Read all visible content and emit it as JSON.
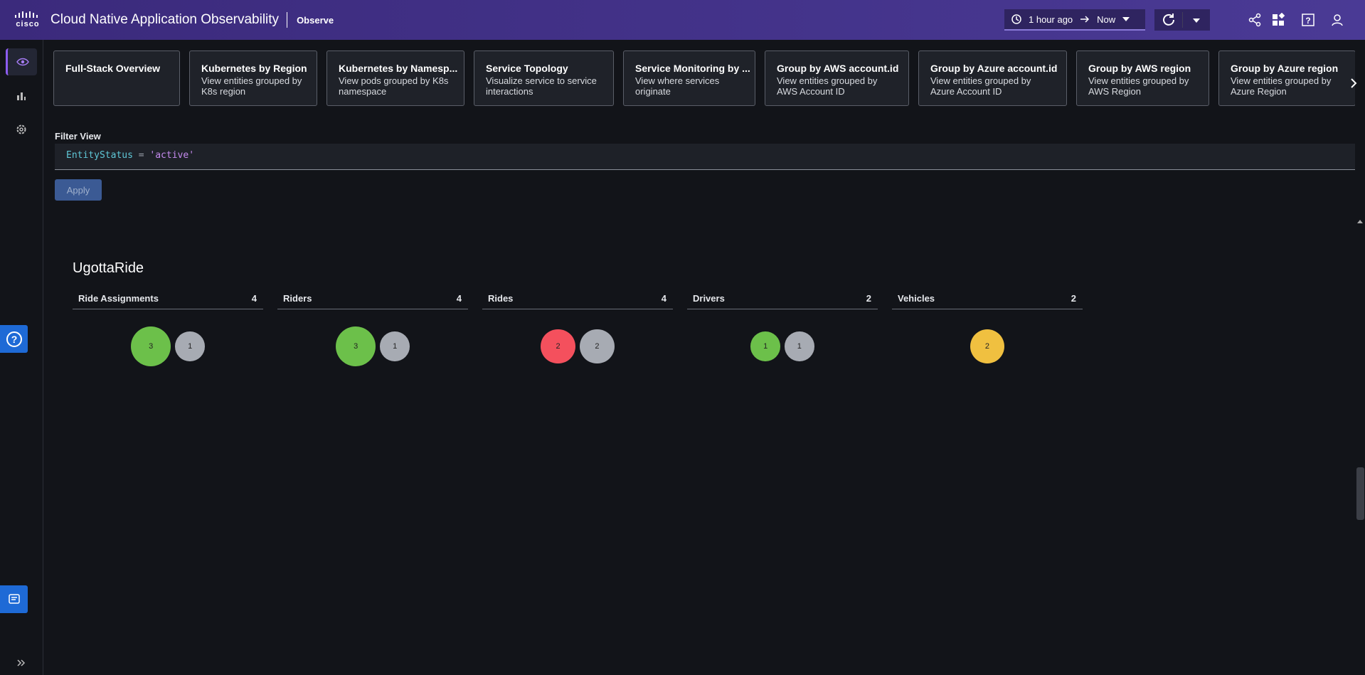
{
  "header": {
    "brand": "cisco",
    "title": "Cloud Native Application Observability",
    "section": "Observe",
    "time_from": "1 hour ago",
    "time_to": "Now"
  },
  "cards": [
    {
      "title": "Full-Stack Overview",
      "description": null
    },
    {
      "title": "Kubernetes by Region",
      "description": "View entities grouped by K8s region"
    },
    {
      "title": "Kubernetes by Namesp...",
      "description": "View pods grouped by K8s namespace"
    },
    {
      "title": "Service Topology",
      "description": "Visualize service to service interactions"
    },
    {
      "title": "Service Monitoring by ...",
      "description": "View where services originate"
    },
    {
      "title": "Group by AWS account.id",
      "description": "View entities grouped by AWS Account ID"
    },
    {
      "title": "Group by Azure account.id",
      "description": "View entities grouped by Azure Account ID"
    },
    {
      "title": "Group by AWS region",
      "description": "View entities grouped by AWS Region"
    },
    {
      "title": "Group by Azure region",
      "description": "View entities grouped by Azure Region"
    }
  ],
  "filter": {
    "label": "Filter View",
    "query_key": "EntityStatus",
    "query_op": "=",
    "query_value": "'active'",
    "button": "Apply"
  },
  "group": {
    "title": "UgottaRide",
    "columns": [
      {
        "name": "Ride Assignments",
        "count": 4,
        "bubbles": [
          {
            "value": 3,
            "color": "#6cc04a"
          },
          {
            "value": 1,
            "color": "#a7abb3"
          }
        ]
      },
      {
        "name": "Riders",
        "count": 4,
        "bubbles": [
          {
            "value": 3,
            "color": "#6cc04a"
          },
          {
            "value": 1,
            "color": "#a7abb3"
          }
        ]
      },
      {
        "name": "Rides",
        "count": 4,
        "bubbles": [
          {
            "value": 2,
            "color": "#f4505d"
          },
          {
            "value": 2,
            "color": "#a7abb3"
          }
        ]
      },
      {
        "name": "Drivers",
        "count": 2,
        "bubbles": [
          {
            "value": 1,
            "color": "#6cc04a"
          },
          {
            "value": 1,
            "color": "#a7abb3"
          }
        ]
      },
      {
        "name": "Vehicles",
        "count": 2,
        "bubbles": [
          {
            "value": 2,
            "color": "#f0c040"
          }
        ]
      }
    ]
  }
}
